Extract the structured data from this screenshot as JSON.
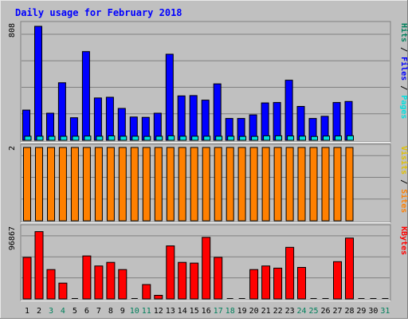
{
  "title": "Daily usage for February 2018",
  "colors": {
    "background": "#c0c0c0",
    "hits": "#00805c",
    "files": "#0000ff",
    "pages": "#00e0e0",
    "visits": "#e0c000",
    "sites": "#ff8000",
    "kbytes": "#ff0000",
    "weekend_day": "#00805c",
    "weekday_day": "#000000"
  },
  "chart_data": {
    "type": "bar",
    "days": [
      "1",
      "2",
      "3",
      "4",
      "5",
      "6",
      "7",
      "8",
      "9",
      "10",
      "11",
      "12",
      "13",
      "14",
      "15",
      "16",
      "17",
      "18",
      "19",
      "20",
      "21",
      "22",
      "23",
      "24",
      "25",
      "26",
      "27",
      "28",
      "29",
      "30",
      "31"
    ],
    "weekend_days": [
      "3",
      "4",
      "10",
      "11",
      "17",
      "18",
      "24",
      "25",
      "31"
    ],
    "panels": [
      {
        "name": "usage",
        "scale_label": "808",
        "ymax": 808,
        "legend": [
          {
            "text": "Pages",
            "color_key": "pages"
          },
          {
            "text": " / ",
            "color_key": "weekday_day"
          },
          {
            "text": "Files",
            "color_key": "files"
          },
          {
            "text": " / ",
            "color_key": "weekday_day"
          },
          {
            "text": "Hits",
            "color_key": "hits"
          }
        ],
        "series": [
          {
            "name": "Hits",
            "color_key": "hits",
            "values": [
              214,
              808,
              192,
              408,
              160,
              629,
              300,
              305,
              226,
              165,
              163,
              192,
              610,
              315,
              317,
              285,
              400,
              155,
              155,
              180,
              265,
              268,
              426,
              240,
              155,
              170,
              268,
              275,
              0,
              0,
              0
            ]
          },
          {
            "name": "Files",
            "color_key": "files",
            "values": [
              214,
              808,
              192,
              408,
              160,
              629,
              300,
              305,
              226,
              165,
              163,
              192,
              610,
              315,
              317,
              285,
              400,
              155,
              155,
              180,
              265,
              268,
              426,
              240,
              155,
              170,
              268,
              275,
              0,
              0,
              0
            ]
          },
          {
            "name": "Pages",
            "color_key": "pages",
            "values": [
              160,
              160,
              158,
              156,
              160,
              165,
              160,
              172,
              160,
              160,
              155,
              160,
              175,
              160,
              160,
              160,
              160,
              160,
              155,
              155,
              175,
              175,
              170,
              162,
              150,
              167,
              170,
              180,
              0,
              0,
              0
            ]
          }
        ]
      },
      {
        "name": "visits",
        "scale_label": "2",
        "ymax": 2,
        "legend": [
          {
            "text": "Sites",
            "color_key": "sites"
          },
          {
            "text": " / ",
            "color_key": "weekday_day"
          },
          {
            "text": "Visits",
            "color_key": "visits"
          }
        ],
        "series": [
          {
            "name": "Visits",
            "color_key": "visits",
            "values": [
              2,
              2,
              2,
              2,
              2,
              2,
              2,
              2,
              2,
              2,
              2,
              2,
              2,
              2,
              2,
              2,
              2,
              2,
              2,
              2,
              2,
              2,
              2,
              2,
              2,
              2,
              2,
              2,
              0,
              0,
              0
            ]
          },
          {
            "name": "Sites",
            "color_key": "sites",
            "values": [
              2,
              2,
              2,
              2,
              2,
              2,
              2,
              2,
              2,
              2,
              2,
              2,
              2,
              2,
              2,
              2,
              2,
              2,
              2,
              2,
              2,
              2,
              2,
              2,
              2,
              2,
              2,
              2,
              0,
              0,
              0
            ]
          }
        ]
      },
      {
        "name": "kbytes",
        "scale_label": "96867",
        "ymax": 96867,
        "legend": [
          {
            "text": "KBytes",
            "color_key": "kbytes"
          }
        ],
        "series": [
          {
            "name": "KBytes",
            "color_key": "kbytes",
            "values": [
              58000,
              94000,
              41000,
              22000,
              0,
              60000,
              46000,
              51000,
              41000,
              0,
              20000,
              5000,
              74000,
              51000,
              50000,
              86000,
              58000,
              0,
              0,
              41000,
              46000,
              43000,
              72000,
              44000,
              0,
              0,
              52000,
              85000,
              0,
              0,
              0
            ]
          }
        ]
      }
    ]
  }
}
